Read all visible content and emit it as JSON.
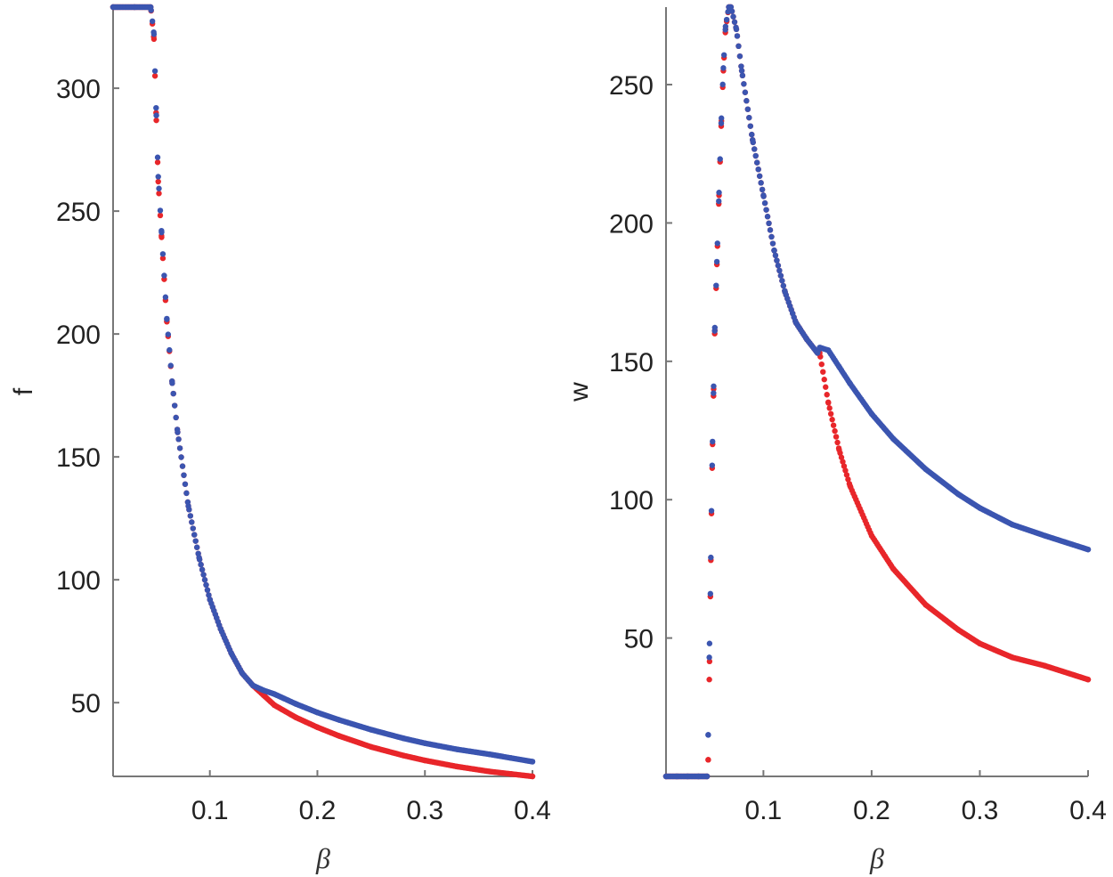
{
  "chart_data": [
    {
      "type": "scatter",
      "title": "",
      "xlabel": "β",
      "ylabel": "f",
      "xlim": [
        0.01,
        0.4
      ],
      "ylim": [
        20,
        333
      ],
      "xticks": [
        0.1,
        0.2,
        0.3,
        0.4
      ],
      "xtick_labels": [
        "0.1",
        "0.2",
        "0.3",
        "0.4"
      ],
      "yticks": [
        50,
        100,
        150,
        200,
        250,
        300
      ],
      "ytick_labels": [
        "50",
        "100",
        "150",
        "200",
        "250",
        "300"
      ],
      "grid": false,
      "series": [
        {
          "name": "red",
          "color": "#e8262a",
          "x": [
            0.01,
            0.03,
            0.045,
            0.048,
            0.05,
            0.052,
            0.055,
            0.06,
            0.065,
            0.07,
            0.08,
            0.09,
            0.1,
            0.11,
            0.12,
            0.13,
            0.14,
            0.15,
            0.16,
            0.18,
            0.2,
            0.22,
            0.25,
            0.28,
            0.3,
            0.33,
            0.36,
            0.38,
            0.4
          ],
          "y": [
            333,
            333,
            333,
            320,
            290,
            262,
            240,
            205,
            180,
            160,
            130,
            109,
            92,
            80,
            70,
            62,
            57,
            53,
            49,
            44,
            40,
            36.5,
            32,
            28.5,
            26.5,
            24,
            22,
            21,
            20
          ]
        },
        {
          "name": "blue",
          "color": "#3b55b0",
          "x": [
            0.01,
            0.03,
            0.045,
            0.048,
            0.05,
            0.052,
            0.055,
            0.06,
            0.065,
            0.07,
            0.08,
            0.09,
            0.1,
            0.11,
            0.12,
            0.13,
            0.14,
            0.15,
            0.16,
            0.18,
            0.2,
            0.22,
            0.25,
            0.28,
            0.3,
            0.33,
            0.36,
            0.38,
            0.4
          ],
          "y": [
            333,
            333,
            333,
            322,
            292,
            264,
            242,
            206,
            180,
            160,
            130,
            109,
            92,
            80,
            70,
            62,
            57,
            55,
            53.5,
            49.5,
            46,
            43,
            39,
            35.5,
            33.5,
            31,
            29,
            27.5,
            26
          ]
        }
      ]
    },
    {
      "type": "scatter",
      "title": "",
      "xlabel": "β",
      "ylabel": "w",
      "xlim": [
        0.01,
        0.4
      ],
      "ylim": [
        0,
        278
      ],
      "xticks": [
        0.1,
        0.2,
        0.3,
        0.4
      ],
      "xtick_labels": [
        "0.1",
        "0.2",
        "0.3",
        "0.4"
      ],
      "yticks": [
        50,
        100,
        150,
        200,
        250
      ],
      "ytick_labels": [
        "50",
        "100",
        "150",
        "200",
        "250"
      ],
      "grid": false,
      "series": [
        {
          "name": "red",
          "color": "#e8262a",
          "x": [
            0.01,
            0.02,
            0.03,
            0.04,
            0.048,
            0.049,
            0.05,
            0.051,
            0.052,
            0.053,
            0.054,
            0.055,
            0.057,
            0.059,
            0.061,
            0.063,
            0.065,
            0.068,
            0.07,
            0.075,
            0.08,
            0.09,
            0.1,
            0.11,
            0.12,
            0.13,
            0.14,
            0.15,
            0.152,
            0.16,
            0.17,
            0.18,
            0.2,
            0.22,
            0.25,
            0.28,
            0.3,
            0.33,
            0.36,
            0.4
          ],
          "y": [
            0,
            0,
            0,
            0,
            0,
            6,
            35,
            65,
            95,
            120,
            140,
            160,
            185,
            210,
            235,
            255,
            270,
            278,
            278,
            270,
            255,
            230,
            210,
            190,
            175,
            164,
            158,
            153,
            153,
            135,
            118,
            105,
            87,
            75,
            62,
            53,
            48,
            43,
            40,
            35
          ]
        },
        {
          "name": "blue",
          "color": "#3b55b0",
          "x": [
            0.01,
            0.02,
            0.03,
            0.04,
            0.048,
            0.049,
            0.05,
            0.051,
            0.052,
            0.053,
            0.054,
            0.055,
            0.057,
            0.059,
            0.061,
            0.063,
            0.065,
            0.068,
            0.07,
            0.075,
            0.08,
            0.09,
            0.1,
            0.11,
            0.12,
            0.13,
            0.14,
            0.15,
            0.152,
            0.16,
            0.17,
            0.18,
            0.2,
            0.22,
            0.25,
            0.28,
            0.3,
            0.33,
            0.36,
            0.4
          ],
          "y": [
            0,
            0,
            0,
            0,
            0,
            15,
            43,
            66,
            96,
            121,
            141,
            161,
            186,
            211,
            236,
            256,
            271,
            278,
            278,
            270,
            255,
            230,
            210,
            190,
            175,
            164,
            158,
            153,
            155,
            154,
            148,
            142,
            131,
            122,
            111,
            102,
            97,
            91,
            87,
            82
          ]
        }
      ]
    }
  ]
}
